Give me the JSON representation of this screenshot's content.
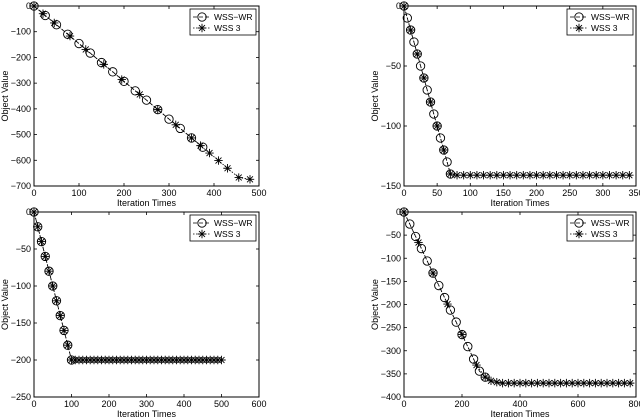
{
  "chart_data": [
    {
      "type": "line",
      "xlabel": "Iteration Times",
      "ylabel": "Object Value",
      "xlim": [
        0,
        500
      ],
      "ylim": [
        -700,
        0
      ],
      "xticks": [
        0,
        100,
        200,
        300,
        400,
        500
      ],
      "yticks": [
        -700,
        -600,
        -500,
        -400,
        -300,
        -200,
        -100,
        0
      ],
      "legend_position": "top-right",
      "series": [
        {
          "name": "WSS−WR",
          "marker": "circle",
          "x": [
            0,
            25,
            50,
            75,
            100,
            125,
            150,
            175,
            200,
            225,
            250,
            275,
            300,
            325,
            350,
            375
          ],
          "y": [
            0,
            -37,
            -73,
            -110,
            -146,
            -183,
            -220,
            -256,
            -293,
            -330,
            -366,
            -403,
            -440,
            -476,
            -513,
            -549
          ]
        },
        {
          "name": "WSS 3",
          "marker": "asterisk",
          "x": [
            0,
            20,
            45,
            80,
            115,
            155,
            195,
            235,
            275,
            315,
            350,
            370,
            390,
            410,
            430,
            455,
            480
          ],
          "y": [
            0,
            -30,
            -66,
            -117,
            -169,
            -227,
            -286,
            -344,
            -403,
            -462,
            -513,
            -543,
            -572,
            -601,
            -631,
            -667,
            -674
          ]
        }
      ]
    },
    {
      "type": "line",
      "xlabel": "Iteration Times",
      "ylabel": "Object Value",
      "xlim": [
        0,
        350
      ],
      "ylim": [
        -150,
        0
      ],
      "xticks": [
        0,
        50,
        100,
        150,
        200,
        250,
        300,
        350
      ],
      "yticks": [
        -150,
        -100,
        -50,
        0
      ],
      "legend_position": "top-right",
      "series": [
        {
          "name": "WSS−WR",
          "marker": "circle",
          "x": [
            0,
            5,
            10,
            15,
            20,
            25,
            30,
            35,
            40,
            45,
            50,
            55,
            60,
            65,
            70
          ],
          "y": [
            0,
            -10,
            -20,
            -30,
            -40,
            -50,
            -60,
            -70,
            -80,
            -90,
            -100,
            -110,
            -120,
            -130,
            -140
          ]
        },
        {
          "name": "WSS 3",
          "marker": "asterisk",
          "x": [
            0,
            10,
            20,
            30,
            40,
            50,
            60,
            70,
            80,
            90,
            100,
            110,
            120,
            130,
            140,
            150,
            160,
            170,
            180,
            190,
            200,
            210,
            220,
            230,
            240,
            250,
            260,
            270,
            280,
            290,
            300,
            310,
            320,
            330,
            340
          ],
          "y": [
            0,
            -20,
            -40,
            -60,
            -80,
            -100,
            -120,
            -140,
            -141,
            -141,
            -141,
            -141,
            -141,
            -141,
            -141,
            -141,
            -141,
            -141,
            -141,
            -141,
            -141,
            -141,
            -141,
            -141,
            -141,
            -141,
            -141,
            -141,
            -141,
            -141,
            -141,
            -141,
            -141,
            -141,
            -141
          ]
        }
      ]
    },
    {
      "type": "line",
      "xlabel": "Iteration Times",
      "ylabel": "Object Value",
      "xlim": [
        0,
        600
      ],
      "ylim": [
        -250,
        0
      ],
      "xticks": [
        0,
        100,
        200,
        300,
        400,
        500,
        600
      ],
      "yticks": [
        -250,
        -200,
        -150,
        -100,
        -50,
        0
      ],
      "legend_position": "top-right",
      "series": [
        {
          "name": "WSS−WR",
          "marker": "circle",
          "x": [
            0,
            10,
            20,
            30,
            40,
            50,
            60,
            70,
            80,
            90,
            100
          ],
          "y": [
            0,
            -20,
            -40,
            -60,
            -80,
            -100,
            -120,
            -140,
            -160,
            -180,
            -200
          ]
        },
        {
          "name": "WSS 3",
          "marker": "asterisk",
          "x": [
            0,
            10,
            20,
            30,
            40,
            50,
            60,
            70,
            80,
            90,
            100,
            110,
            120,
            130,
            140,
            150,
            160,
            170,
            180,
            190,
            200,
            210,
            220,
            230,
            240,
            250,
            260,
            270,
            280,
            290,
            300,
            310,
            320,
            330,
            340,
            350,
            360,
            370,
            380,
            390,
            400,
            410,
            420,
            430,
            440,
            450,
            460,
            470,
            480,
            490,
            500
          ],
          "y": [
            0,
            -20,
            -40,
            -60,
            -80,
            -100,
            -120,
            -140,
            -160,
            -180,
            -200,
            -200,
            -200,
            -200,
            -200,
            -200,
            -200,
            -200,
            -200,
            -200,
            -200,
            -200,
            -200,
            -200,
            -200,
            -200,
            -200,
            -200,
            -200,
            -200,
            -200,
            -200,
            -200,
            -200,
            -200,
            -200,
            -200,
            -200,
            -200,
            -200,
            -200,
            -200,
            -200,
            -200,
            -200,
            -200,
            -200,
            -200,
            -200,
            -200,
            -200
          ]
        }
      ]
    },
    {
      "type": "line",
      "xlabel": "Iteration Times",
      "ylabel": "Object Value",
      "xlim": [
        0,
        800
      ],
      "ylim": [
        -400,
        0
      ],
      "xticks": [
        0,
        200,
        400,
        600,
        800
      ],
      "yticks": [
        -400,
        -350,
        -300,
        -250,
        -200,
        -150,
        -100,
        -50,
        0
      ],
      "legend_position": "top-right",
      "series": [
        {
          "name": "WSS−WR",
          "marker": "circle",
          "x": [
            0,
            20,
            40,
            60,
            80,
            100,
            120,
            140,
            160,
            180,
            200,
            220,
            240,
            260,
            280
          ],
          "y": [
            0,
            -26,
            -53,
            -79,
            -106,
            -132,
            -159,
            -185,
            -212,
            -238,
            -265,
            -291,
            -318,
            -344,
            -357
          ]
        },
        {
          "name": "WSS 3",
          "marker": "asterisk",
          "x": [
            0,
            50,
            100,
            150,
            200,
            250,
            280,
            300,
            320,
            340,
            360,
            380,
            400,
            420,
            440,
            460,
            480,
            500,
            520,
            540,
            560,
            580,
            600,
            620,
            640,
            660,
            680,
            700,
            720,
            740,
            760,
            780
          ],
          "y": [
            0,
            -66,
            -132,
            -199,
            -265,
            -331,
            -357,
            -365,
            -368,
            -370,
            -370,
            -370,
            -370,
            -370,
            -370,
            -370,
            -370,
            -370,
            -370,
            -370,
            -370,
            -370,
            -370,
            -370,
            -370,
            -370,
            -370,
            -370,
            -370,
            -370,
            -370,
            -370
          ]
        }
      ]
    }
  ]
}
